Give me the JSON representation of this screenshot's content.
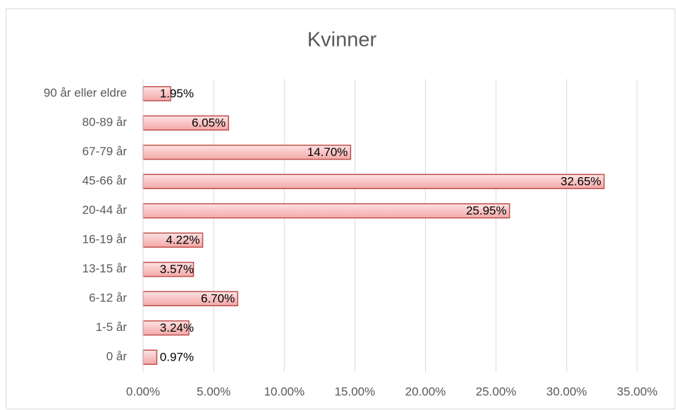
{
  "chart_data": {
    "type": "bar",
    "orientation": "horizontal",
    "title": "Kvinner",
    "categories": [
      "90 år eller eldre",
      "80-89 år",
      "67-79 år",
      "45-66 år",
      "20-44 år",
      "16-19 år",
      "13-15 år",
      "6-12 år",
      "1-5 år",
      "0 år"
    ],
    "values": [
      1.95,
      6.05,
      14.7,
      32.65,
      25.95,
      4.22,
      3.57,
      6.7,
      3.24,
      0.97
    ],
    "value_labels": [
      "1.95%",
      "6.05%",
      "14.70%",
      "32.65%",
      "25.95%",
      "4.22%",
      "3.57%",
      "6.70%",
      "3.24%",
      "0.97%"
    ],
    "color": "#f8c4c4",
    "edge_color": "#c0504d",
    "xlim": [
      0,
      35
    ],
    "xticks": [
      {
        "value": 0,
        "label": "0.00%"
      },
      {
        "value": 5,
        "label": "5.00%"
      },
      {
        "value": 10,
        "label": "10.00%"
      },
      {
        "value": 15,
        "label": "15.00%"
      },
      {
        "value": 20,
        "label": "20.00%"
      },
      {
        "value": 25,
        "label": "25.00%"
      },
      {
        "value": 30,
        "label": "30.00%"
      },
      {
        "value": 35,
        "label": "35.00%"
      }
    ],
    "grid": true
  }
}
